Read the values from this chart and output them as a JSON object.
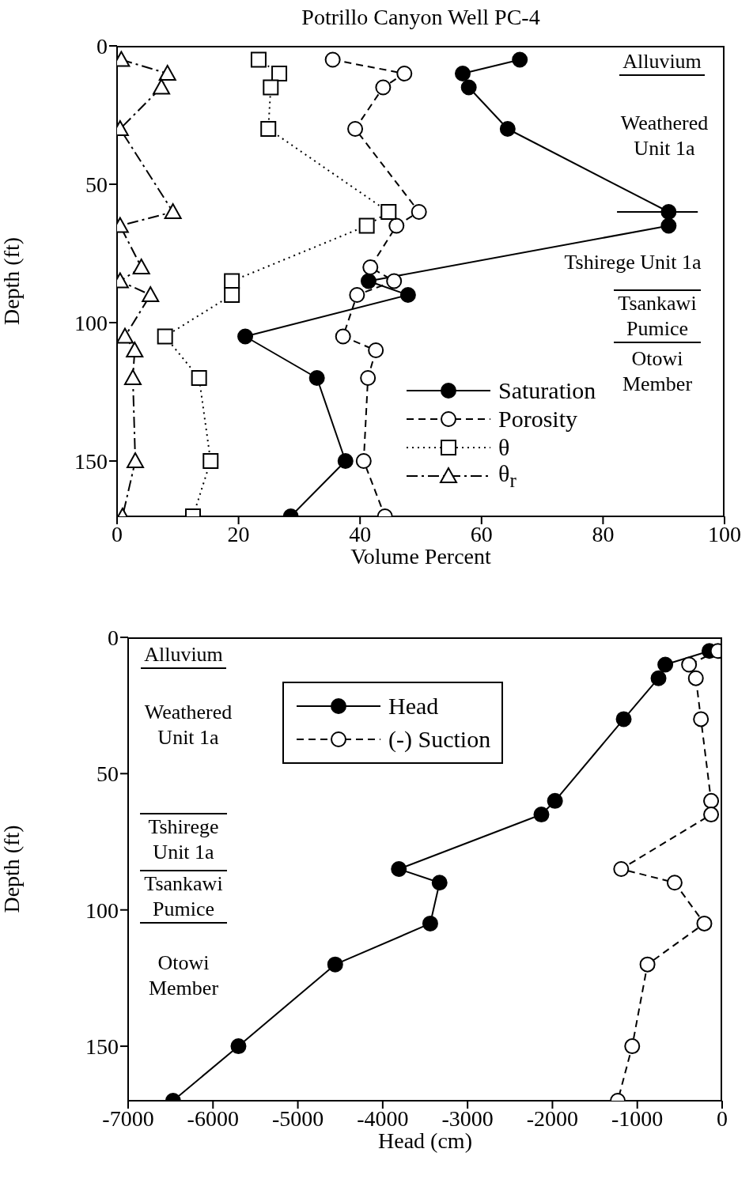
{
  "chart_data": [
    {
      "type": "line",
      "title": "Potrillo Canyon Well PC-4",
      "xlabel": "Volume Percent",
      "ylabel": "Depth (ft)",
      "xlim": [
        0,
        100
      ],
      "xticks": [
        0,
        20,
        40,
        60,
        80,
        100
      ],
      "ylim": [
        170,
        0
      ],
      "yticks": [
        0,
        50,
        100,
        150
      ],
      "legend": "right",
      "series": [
        {
          "name": "Saturation",
          "color": "#000000",
          "marker": "circle",
          "line_style": "solid",
          "x": [
            66.3,
            56.9,
            57.9,
            64.3,
            90.8,
            90.8,
            41.4,
            47.9,
            21.1,
            32.9,
            37.6,
            28.6
          ],
          "values": [
            5,
            10,
            15,
            30,
            60,
            65,
            85,
            90,
            105,
            120,
            150,
            170
          ],
          "xerrors": [
            null,
            null,
            null,
            null,
            [
              82.3,
              95.6
            ],
            null,
            null,
            null,
            null,
            null,
            null,
            null
          ]
        },
        {
          "name": "Porosity",
          "color": "#000000",
          "marker": "circle",
          "line_style": "dashed",
          "x": [
            35.5,
            47.3,
            43.8,
            39.2,
            49.7,
            46,
            41.7,
            45.6,
            39.5,
            37.2,
            42.6,
            41.3,
            40.6,
            44.1
          ],
          "values": [
            5,
            10,
            15,
            30,
            60,
            65,
            80,
            85,
            90,
            105,
            110,
            120,
            150,
            170
          ]
        },
        {
          "name": "θ",
          "color": "#000000",
          "marker": "square",
          "line_style": "dotted",
          "x": [
            23.3,
            26.7,
            25.3,
            24.9,
            44.7,
            41.1,
            18.9,
            18.9,
            7.9,
            13.5,
            15.4,
            12.5
          ],
          "values": [
            5,
            10,
            15,
            30,
            60,
            65,
            85,
            90,
            105,
            120,
            150,
            170
          ]
        },
        {
          "name": "θ$_{r}$",
          "color": "#000000",
          "marker": "triangle",
          "line_style": "dashdot",
          "x": [
            0.7,
            8.3,
            7.3,
            0.5,
            9.2,
            0.5,
            4,
            0.5,
            5.5,
            1.3,
            2.9,
            2.6,
            3,
            0.9
          ],
          "values": [
            5,
            10,
            15,
            30,
            60,
            65,
            80,
            85,
            90,
            105,
            110,
            120,
            150,
            170
          ]
        }
      ],
      "annotations": [
        "Alluvium",
        "Weathered Unit 1a",
        "Tshirege Unit 1a",
        "Tsankawi Pumice",
        "Otowi Member"
      ]
    },
    {
      "type": "line",
      "xlabel": "Head (cm)",
      "ylabel": "Depth (ft)",
      "xlim": [
        -7000,
        0
      ],
      "xticks": [
        -7000,
        -6000,
        -5000,
        -4000,
        -3000,
        -2000,
        -1000,
        0
      ],
      "ylim": [
        170,
        0
      ],
      "yticks": [
        0,
        50,
        100,
        150
      ],
      "legend": "top",
      "series": [
        {
          "name": "Head",
          "color": "#000000",
          "marker": "circle",
          "line_style": "solid",
          "x": [
            -150,
            -670,
            -750,
            -1160,
            -1970,
            -2130,
            -3810,
            -3330,
            -3440,
            -4560,
            -5700,
            -6470
          ],
          "values": [
            5,
            10,
            15,
            30,
            60,
            65,
            85,
            90,
            105,
            120,
            150,
            170
          ]
        },
        {
          "name": "(-) Suction",
          "color": "#000000",
          "marker": "circle",
          "line_style": "dashed",
          "x": [
            -50,
            -390,
            -310,
            -250,
            -130,
            -130,
            -1190,
            -560,
            -210,
            -880,
            -1060,
            -1230
          ],
          "values": [
            5,
            10,
            15,
            30,
            60,
            65,
            85,
            90,
            105,
            120,
            150,
            170
          ]
        }
      ],
      "annotations": [
        "Alluvium",
        "Weathered Unit 1a",
        "Tshirege Unit 1a",
        "Tsankawi Pumice",
        "Otowi Member"
      ]
    }
  ]
}
